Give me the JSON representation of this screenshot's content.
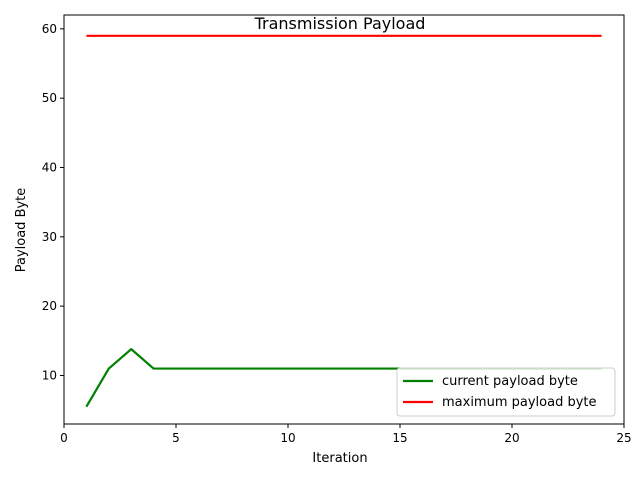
{
  "chart_data": {
    "type": "line",
    "title": "Transmission Payload",
    "xlabel": "Iteration",
    "ylabel": "Payload Byte",
    "xlim": [
      0,
      25
    ],
    "ylim": [
      3,
      62
    ],
    "xticks": [
      0,
      5,
      10,
      15,
      20,
      25
    ],
    "yticks": [
      10,
      20,
      30,
      40,
      50,
      60
    ],
    "grid": false,
    "legend_position": "lower-right",
    "series": [
      {
        "name": "current payload byte",
        "color": "#008000",
        "x": [
          1,
          2,
          3,
          4,
          5,
          6,
          7,
          8,
          9,
          10,
          11,
          12,
          13,
          14,
          15,
          16,
          17,
          18,
          19,
          20,
          21,
          22,
          23,
          24
        ],
        "y": [
          5.5,
          11,
          13.8,
          11,
          11,
          11,
          11,
          11,
          11,
          11,
          11,
          11,
          11,
          11,
          11,
          11,
          11,
          11,
          11,
          11,
          11,
          11,
          11,
          11
        ]
      },
      {
        "name": "maximum payload byte",
        "color": "#ff0000",
        "x": [
          1,
          2,
          3,
          4,
          5,
          6,
          7,
          8,
          9,
          10,
          11,
          12,
          13,
          14,
          15,
          16,
          17,
          18,
          19,
          20,
          21,
          22,
          23,
          24
        ],
        "y": [
          59,
          59,
          59,
          59,
          59,
          59,
          59,
          59,
          59,
          59,
          59,
          59,
          59,
          59,
          59,
          59,
          59,
          59,
          59,
          59,
          59,
          59,
          59,
          59
        ]
      }
    ]
  }
}
